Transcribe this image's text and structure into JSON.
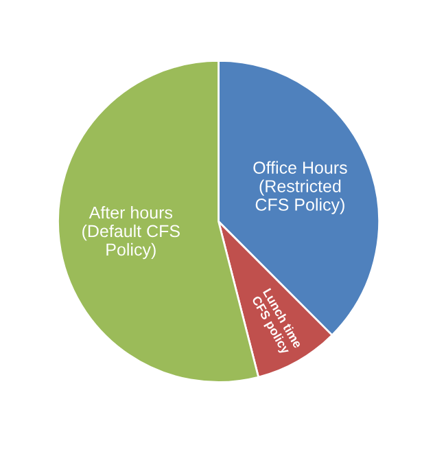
{
  "chart_data": {
    "type": "pie",
    "categories": [
      "Office Hours\n(Restricted\nCFS Policy)",
      "Lunch time\nCFS policy",
      "After hours\n(Default CFS\nPolicy)"
    ],
    "values": [
      37.5,
      8.5,
      54
    ],
    "colors": [
      "#4f81bd",
      "#c0504d",
      "#9bbb59"
    ],
    "legend": false
  }
}
